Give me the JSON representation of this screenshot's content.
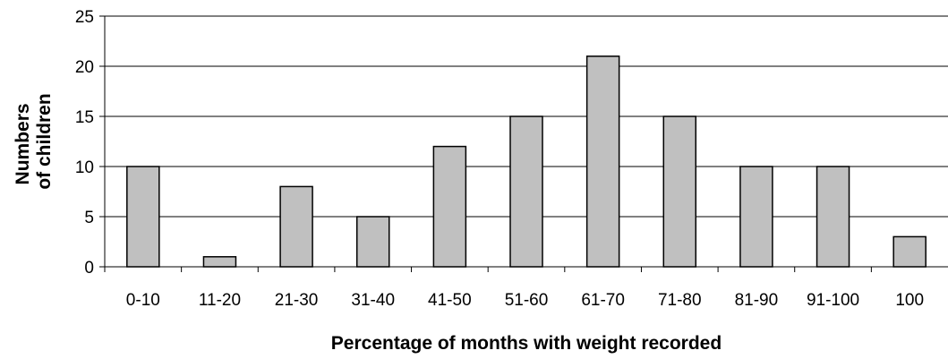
{
  "chart_data": {
    "type": "bar",
    "title": "",
    "xlabel": "Percentage of months with weight recorded",
    "ylabel_lines": [
      "Numbers",
      "of children"
    ],
    "categories": [
      "0-10",
      "11-20",
      "21-30",
      "31-40",
      "41-50",
      "51-60",
      "61-70",
      "71-80",
      "81-90",
      "91-100",
      "100"
    ],
    "values": [
      10,
      1,
      8,
      5,
      12,
      15,
      21,
      15,
      10,
      10,
      3
    ],
    "ylim": [
      0,
      25
    ],
    "yticks": [
      0,
      5,
      10,
      15,
      20,
      25
    ],
    "grid": true,
    "bar_color": "#c0c0c0",
    "bar_edge_color": "#000000",
    "gridline_color": "#000000"
  }
}
